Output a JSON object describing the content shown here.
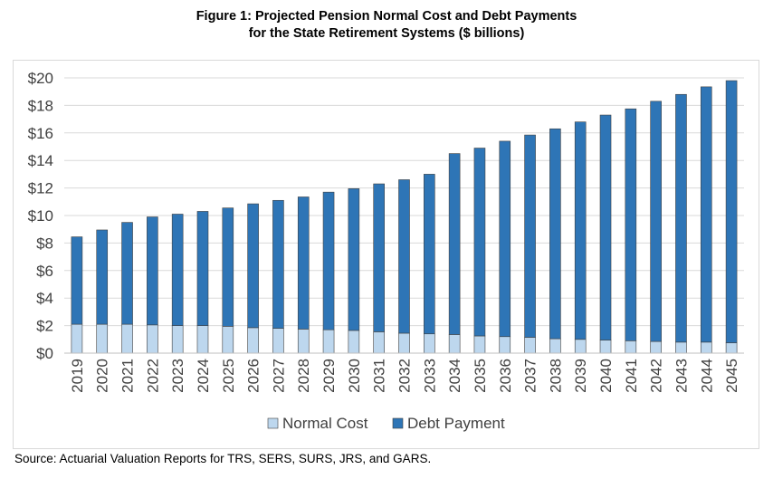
{
  "chart_data": {
    "type": "bar",
    "stacked": true,
    "title": "Figure 1: Projected Pension Normal Cost and Debt Payments",
    "subtitle": "for the State Retirement Systems ($ billions)",
    "xlabel": "",
    "ylabel": "",
    "ylim": [
      0,
      20
    ],
    "yticks": [
      "$0",
      "$2",
      "$4",
      "$6",
      "$8",
      "$10",
      "$12",
      "$14",
      "$16",
      "$18",
      "$20"
    ],
    "grid": true,
    "legend_position": "bottom",
    "categories": [
      "2019",
      "2020",
      "2021",
      "2022",
      "2023",
      "2024",
      "2025",
      "2026",
      "2027",
      "2028",
      "2029",
      "2030",
      "2031",
      "2032",
      "2033",
      "2034",
      "2035",
      "2036",
      "2037",
      "2038",
      "2039",
      "2040",
      "2041",
      "2042",
      "2043",
      "2044",
      "2045"
    ],
    "series": [
      {
        "name": "Normal Cost",
        "color": "#bdd7ee",
        "values": [
          2.1,
          2.1,
          2.1,
          2.05,
          2.0,
          2.0,
          1.95,
          1.85,
          1.8,
          1.75,
          1.7,
          1.65,
          1.55,
          1.45,
          1.4,
          1.35,
          1.25,
          1.2,
          1.15,
          1.05,
          1.0,
          0.95,
          0.9,
          0.85,
          0.8,
          0.8,
          0.75
        ]
      },
      {
        "name": "Debt Payment",
        "color": "#2e75b6",
        "values": [
          6.35,
          6.85,
          7.4,
          7.85,
          8.1,
          8.3,
          8.6,
          9.0,
          9.3,
          9.6,
          10.0,
          10.3,
          10.75,
          11.15,
          11.6,
          13.15,
          13.65,
          14.2,
          14.7,
          15.25,
          15.8,
          16.35,
          16.85,
          17.45,
          18.0,
          18.55,
          19.05
        ]
      }
    ]
  },
  "source": "Source: Actuarial Valuation Reports for TRS, SERS, SURS, JRS, and GARS."
}
